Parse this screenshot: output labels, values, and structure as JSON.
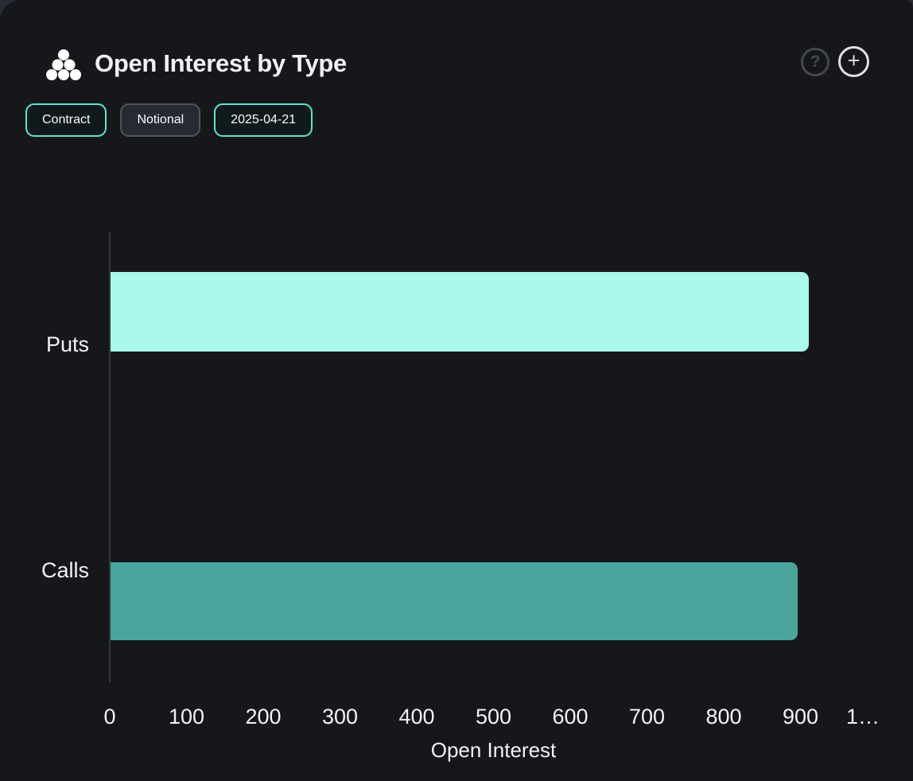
{
  "header": {
    "title": "Open Interest by Type",
    "help_glyph": "?",
    "add_glyph": "+"
  },
  "controls": {
    "contract": {
      "label": "Contract",
      "active": true
    },
    "notional": {
      "label": "Notional",
      "active": false
    },
    "date": {
      "label": "2025-04-21",
      "active": true
    }
  },
  "chart_data": {
    "type": "bar",
    "orientation": "horizontal",
    "title": "Open Interest by Type",
    "xlabel": "Open Interest",
    "ylabel": "",
    "categories": [
      "Puts",
      "Calls"
    ],
    "series": [
      {
        "name": "Open Interest",
        "values": [
          910,
          895
        ]
      }
    ],
    "xlim": [
      0,
      1000
    ],
    "xticks": [
      0,
      100,
      200,
      300,
      400,
      500,
      600,
      700,
      800,
      900,
      1000
    ],
    "xtick_labels": [
      "0",
      "100",
      "200",
      "300",
      "400",
      "500",
      "600",
      "700",
      "800",
      "900",
      "1…"
    ],
    "bar_colors": [
      "#a9f8ec",
      "#4aa59d"
    ],
    "grid": false,
    "legend": false
  },
  "colors": {
    "accent_teal": "#5de5cb",
    "bar_puts": "#a9f8ec",
    "bar_calls": "#4aa59d",
    "card_bg": "#16171b",
    "axis_line": "#34373c",
    "text": "#f2f3f4"
  }
}
